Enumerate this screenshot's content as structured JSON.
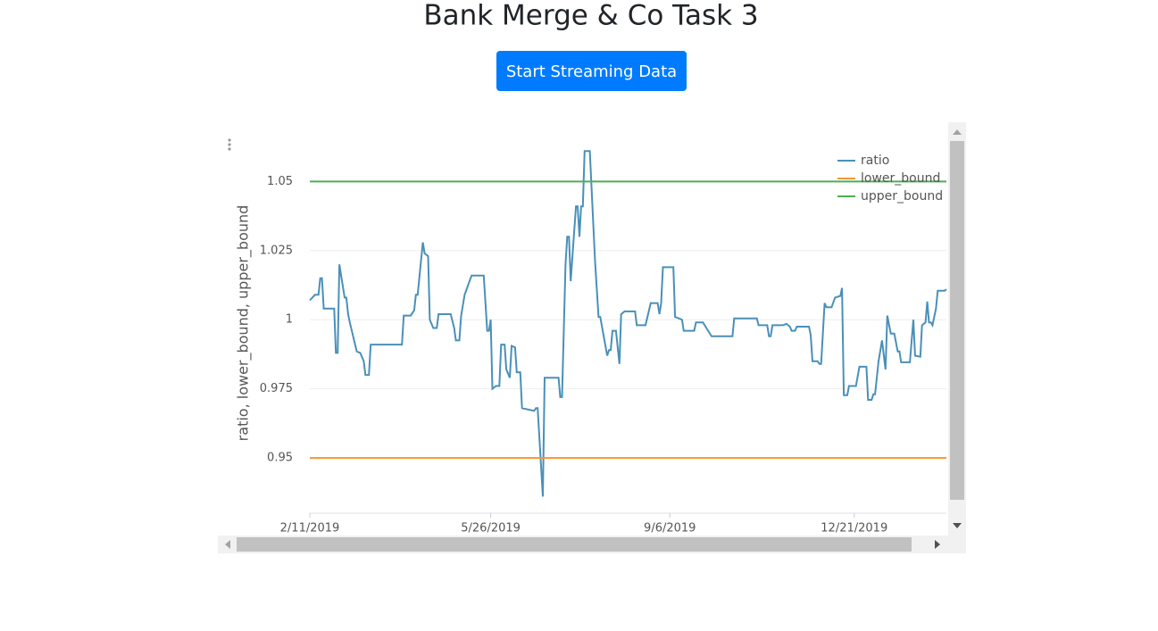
{
  "title": "Bank Merge & Co Task 3",
  "button": "Start Streaming Data",
  "chart_data": {
    "type": "line",
    "y_label": "ratio, lower_bound, upper_bound",
    "xlim": [
      "2019-02-11",
      "2020-02-12"
    ],
    "xticks": [
      {
        "value": "2019-02-11",
        "label": "2/11/2019"
      },
      {
        "value": "2019-05-26",
        "label": "5/26/2019"
      },
      {
        "value": "2019-09-06",
        "label": "9/6/2019"
      },
      {
        "value": "2019-12-21",
        "label": "12/21/2019"
      }
    ],
    "ylim": [
      0.93,
      1.064
    ],
    "yticks": [
      0.95,
      0.975,
      1,
      1.025,
      1.05
    ],
    "grid": true,
    "legend": "top-right",
    "series": [
      {
        "name": "ratio",
        "color": "#4a90b8",
        "x": [
          "2019-02-11",
          "2019-02-14",
          "2019-02-16",
          "2019-02-17",
          "2019-02-18",
          "2019-02-19",
          "2019-02-25",
          "2019-02-26",
          "2019-02-27",
          "2019-02-28",
          "2019-03-03",
          "2019-03-04",
          "2019-03-05",
          "2019-03-06",
          "2019-03-10",
          "2019-03-12",
          "2019-03-14",
          "2019-03-15",
          "2019-03-17",
          "2019-03-18",
          "2019-04-05",
          "2019-04-06",
          "2019-04-10",
          "2019-04-12",
          "2019-04-13",
          "2019-04-14",
          "2019-04-17",
          "2019-04-18",
          "2019-04-20",
          "2019-04-21",
          "2019-04-23",
          "2019-04-25",
          "2019-04-26",
          "2019-05-03",
          "2019-05-05",
          "2019-05-06",
          "2019-05-08",
          "2019-05-09",
          "2019-05-11",
          "2019-05-15",
          "2019-05-22",
          "2019-05-24",
          "2019-05-25",
          "2019-05-26",
          "2019-05-27",
          "2019-05-29",
          "2019-05-31",
          "2019-06-01",
          "2019-06-03",
          "2019-06-04",
          "2019-06-06",
          "2019-06-07",
          "2019-06-09",
          "2019-06-10",
          "2019-06-12",
          "2019-06-13",
          "2019-06-20",
          "2019-06-21",
          "2019-06-22",
          "2019-06-25",
          "2019-06-26",
          "2019-07-04",
          "2019-07-05",
          "2019-07-06",
          "2019-07-08",
          "2019-07-09",
          "2019-07-10",
          "2019-07-11",
          "2019-07-14",
          "2019-07-15",
          "2019-07-16",
          "2019-07-17",
          "2019-07-18",
          "2019-07-19",
          "2019-07-22",
          "2019-07-25",
          "2019-07-27",
          "2019-07-28",
          "2019-07-30",
          "2019-08-01",
          "2019-08-02",
          "2019-08-03",
          "2019-08-04",
          "2019-08-06",
          "2019-08-08",
          "2019-08-09",
          "2019-08-11",
          "2019-08-17",
          "2019-08-18",
          "2019-08-23",
          "2019-08-26",
          "2019-08-30",
          "2019-08-31",
          "2019-09-01",
          "2019-09-02",
          "2019-09-08",
          "2019-09-09",
          "2019-09-13",
          "2019-09-14",
          "2019-09-20",
          "2019-09-21",
          "2019-09-25",
          "2019-09-27",
          "2019-09-30",
          "2019-10-12",
          "2019-10-13",
          "2019-10-26",
          "2019-10-27",
          "2019-11-01",
          "2019-11-02",
          "2019-11-03",
          "2019-11-04",
          "2019-11-10",
          "2019-11-12",
          "2019-11-14",
          "2019-11-15",
          "2019-11-17",
          "2019-11-18",
          "2019-11-25",
          "2019-11-26",
          "2019-11-27",
          "2019-11-30",
          "2019-12-01",
          "2019-12-02",
          "2019-12-04",
          "2019-12-05",
          "2019-12-08",
          "2019-12-10",
          "2019-12-13",
          "2019-12-14",
          "2019-12-15",
          "2019-12-17",
          "2019-12-18",
          "2019-12-22",
          "2019-12-24",
          "2019-12-28",
          "2019-12-29",
          "2019-12-31",
          "2020-01-01",
          "2020-01-02",
          "2020-01-04",
          "2020-01-06",
          "2020-01-08",
          "2020-01-09",
          "2020-01-11",
          "2020-01-13",
          "2020-01-15",
          "2020-01-16",
          "2020-01-17",
          "2020-01-22",
          "2020-01-24",
          "2020-01-25",
          "2020-01-28",
          "2020-01-29",
          "2020-01-31",
          "2020-02-01",
          "2020-02-02",
          "2020-02-03",
          "2020-02-04",
          "2020-02-06",
          "2020-02-07",
          "2020-02-11",
          "2020-02-12"
        ],
        "values": [
          1.007,
          1.009,
          1.009,
          1.015,
          1.015,
          1.004,
          1.004,
          0.988,
          0.988,
          1.02,
          1.008,
          1.008,
          1.002,
          0.999,
          0.9885,
          0.988,
          0.985,
          0.98,
          0.98,
          0.991,
          0.991,
          1.0015,
          1.0015,
          1.0034,
          1.009,
          1.009,
          1.028,
          1.024,
          1.023,
          1.0,
          0.997,
          0.997,
          1.002,
          1.002,
          0.997,
          0.9925,
          0.9925,
          1.0015,
          1.009,
          1.016,
          1.016,
          0.996,
          0.996,
          1.0,
          0.975,
          0.976,
          0.976,
          0.991,
          0.991,
          0.982,
          0.979,
          0.9905,
          0.99,
          0.981,
          0.981,
          0.968,
          0.967,
          0.968,
          0.968,
          0.936,
          0.979,
          0.979,
          0.972,
          0.972,
          1.02,
          1.03,
          1.03,
          1.014,
          1.041,
          1.041,
          1.03,
          1.041,
          1.041,
          1.061,
          1.061,
          1.021,
          1.001,
          1.001,
          0.994,
          0.987,
          0.989,
          0.989,
          0.996,
          0.996,
          0.984,
          1.002,
          1.003,
          1.003,
          0.998,
          0.998,
          1.006,
          1.006,
          1.002,
          1.006,
          1.019,
          1.019,
          1.001,
          1.0,
          0.996,
          0.996,
          0.999,
          0.999,
          0.997,
          0.994,
          0.994,
          1.0005,
          1.0005,
          0.998,
          0.998,
          0.994,
          0.994,
          0.998,
          0.998,
          0.9985,
          0.9975,
          0.996,
          0.996,
          0.9975,
          0.9975,
          0.9945,
          0.985,
          0.985,
          0.984,
          0.984,
          1.006,
          1.0045,
          1.0045,
          1.008,
          1.0086,
          1.0115,
          0.9727,
          0.9727,
          0.976,
          0.976,
          0.983,
          0.983,
          0.971,
          0.971,
          0.973,
          0.973,
          0.985,
          0.9925,
          0.982,
          1.0015,
          0.995,
          0.995,
          0.9885,
          0.9885,
          0.9846,
          0.9846,
          1.0,
          0.987,
          0.9866,
          0.998,
          0.999,
          1.0066,
          0.999,
          0.999,
          0.998,
          1.004,
          1.0105,
          1.0105,
          1.011
        ]
      },
      {
        "name": "lower_bound",
        "color": "#f5962f",
        "x": [
          "2019-02-11",
          "2020-02-12"
        ],
        "values": [
          0.95,
          0.95
        ]
      },
      {
        "name": "upper_bound",
        "color": "#4caf50",
        "x": [
          "2019-02-11",
          "2020-02-12"
        ],
        "values": [
          1.05,
          1.05
        ]
      }
    ]
  }
}
